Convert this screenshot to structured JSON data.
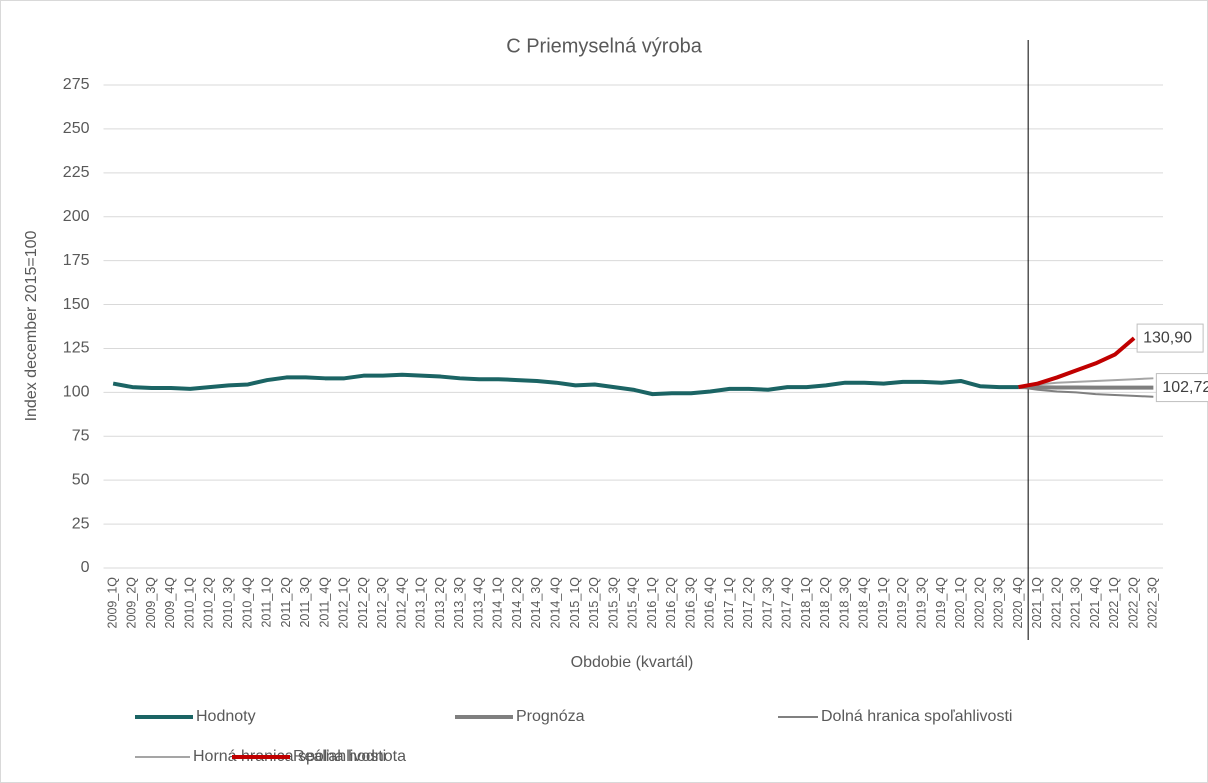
{
  "chart_data": {
    "type": "line",
    "title": "C Priemyselná výroba",
    "y_label": "Index december 2015=100",
    "x_label": "Obdobie (kvartál)",
    "categories": [
      "2009_1Q",
      "2009_2Q",
      "2009_3Q",
      "2009_4Q",
      "2010_1Q",
      "2010_2Q",
      "2010_3Q",
      "2010_4Q",
      "2011_1Q",
      "2011_2Q",
      "2011_3Q",
      "2011_4Q",
      "2012_1Q",
      "2012_2Q",
      "2012_3Q",
      "2012_4Q",
      "2013_1Q",
      "2013_2Q",
      "2013_3Q",
      "2013_4Q",
      "2014_1Q",
      "2014_2Q",
      "2014_3Q",
      "2014_4Q",
      "2015_1Q",
      "2015_2Q",
      "2015_3Q",
      "2015_4Q",
      "2016_1Q",
      "2016_2Q",
      "2016_3Q",
      "2016_4Q",
      "2017_1Q",
      "2017_2Q",
      "2017_3Q",
      "2017_4Q",
      "2018_1Q",
      "2018_2Q",
      "2018_3Q",
      "2018_4Q",
      "2019_1Q",
      "2019_2Q",
      "2019_3Q",
      "2019_4Q",
      "2020_1Q",
      "2020_2Q",
      "2020_3Q",
      "2020_4Q",
      "2021_1Q",
      "2021_2Q",
      "2021_3Q",
      "2021_4Q",
      "2022_1Q",
      "2022_2Q",
      "2022_3Q"
    ],
    "series": [
      {
        "name": "Hodnoty",
        "color": "#1b6464",
        "width": 4,
        "values": [
          105,
          103,
          102.5,
          102.5,
          102,
          103,
          104,
          104.5,
          107,
          108.5,
          108.5,
          108,
          108,
          109.5,
          109.5,
          110,
          109.5,
          109,
          108,
          107.5,
          107.5,
          107,
          106.5,
          105.5,
          104,
          104.5,
          103,
          101.5,
          99,
          99.5,
          99.5,
          100.5,
          102,
          102,
          101.5,
          103,
          103,
          104,
          105.5,
          105.5,
          105,
          106,
          106,
          105.5,
          106.5,
          103.5,
          103,
          103,
          null,
          null,
          null,
          null,
          null,
          null,
          null
        ]
      },
      {
        "name": "Prognóza",
        "color": "#7f7f7f",
        "width": 4,
        "values": [
          null,
          null,
          null,
          null,
          null,
          null,
          null,
          null,
          null,
          null,
          null,
          null,
          null,
          null,
          null,
          null,
          null,
          null,
          null,
          null,
          null,
          null,
          null,
          null,
          null,
          null,
          null,
          null,
          null,
          null,
          null,
          null,
          null,
          null,
          null,
          null,
          null,
          null,
          null,
          null,
          null,
          null,
          null,
          null,
          null,
          null,
          null,
          103,
          102.9,
          102.8,
          102.8,
          102.7,
          102.7,
          102.7,
          102.72
        ],
        "value_labels": [
          null,
          null,
          null,
          null,
          null,
          null,
          null,
          null,
          null,
          null,
          null,
          null,
          null,
          null,
          null,
          null,
          null,
          null,
          null,
          null,
          null,
          null,
          null,
          null,
          null,
          null,
          null,
          null,
          null,
          null,
          null,
          null,
          null,
          null,
          null,
          null,
          null,
          null,
          null,
          null,
          null,
          null,
          null,
          null,
          null,
          null,
          null,
          null,
          null,
          null,
          null,
          null,
          null,
          null,
          "102,72"
        ]
      },
      {
        "name": "Dolná hranica spoľahlivosti",
        "color": "#808080",
        "width": 2,
        "values": [
          null,
          null,
          null,
          null,
          null,
          null,
          null,
          null,
          null,
          null,
          null,
          null,
          null,
          null,
          null,
          null,
          null,
          null,
          null,
          null,
          null,
          null,
          null,
          null,
          null,
          null,
          null,
          null,
          null,
          null,
          null,
          null,
          null,
          null,
          null,
          null,
          null,
          null,
          null,
          null,
          null,
          null,
          null,
          null,
          null,
          null,
          null,
          103,
          101.5,
          100.5,
          100,
          99,
          98.5,
          98,
          97.5
        ]
      },
      {
        "name": "Horná hranica spoľahlivosti",
        "color": "#a5a5a5",
        "width": 2,
        "values": [
          null,
          null,
          null,
          null,
          null,
          null,
          null,
          null,
          null,
          null,
          null,
          null,
          null,
          null,
          null,
          null,
          null,
          null,
          null,
          null,
          null,
          null,
          null,
          null,
          null,
          null,
          null,
          null,
          null,
          null,
          null,
          null,
          null,
          null,
          null,
          null,
          null,
          null,
          null,
          null,
          null,
          null,
          null,
          null,
          null,
          null,
          null,
          103,
          104.5,
          105.5,
          106,
          106.5,
          107,
          107.5,
          108
        ]
      },
      {
        "name": "Reálna hodnota",
        "color": "#c00000",
        "width": 4,
        "values": [
          null,
          null,
          null,
          null,
          null,
          null,
          null,
          null,
          null,
          null,
          null,
          null,
          null,
          null,
          null,
          null,
          null,
          null,
          null,
          null,
          null,
          null,
          null,
          null,
          null,
          null,
          null,
          null,
          null,
          null,
          null,
          null,
          null,
          null,
          null,
          null,
          null,
          null,
          null,
          null,
          null,
          null,
          null,
          null,
          null,
          null,
          null,
          103,
          105,
          108.5,
          112.5,
          116.5,
          121.5,
          130.9,
          null
        ],
        "value_labels": [
          null,
          null,
          null,
          null,
          null,
          null,
          null,
          null,
          null,
          null,
          null,
          null,
          null,
          null,
          null,
          null,
          null,
          null,
          null,
          null,
          null,
          null,
          null,
          null,
          null,
          null,
          null,
          null,
          null,
          null,
          null,
          null,
          null,
          null,
          null,
          null,
          null,
          null,
          null,
          null,
          null,
          null,
          null,
          null,
          null,
          null,
          null,
          null,
          null,
          null,
          null,
          null,
          null,
          "130,90",
          null
        ]
      }
    ],
    "ylim": [
      0,
      275
    ],
    "yticks": [
      0,
      25,
      50,
      75,
      100,
      125,
      150,
      175,
      200,
      225,
      250,
      275
    ],
    "grid": true,
    "legend": "bottom"
  }
}
